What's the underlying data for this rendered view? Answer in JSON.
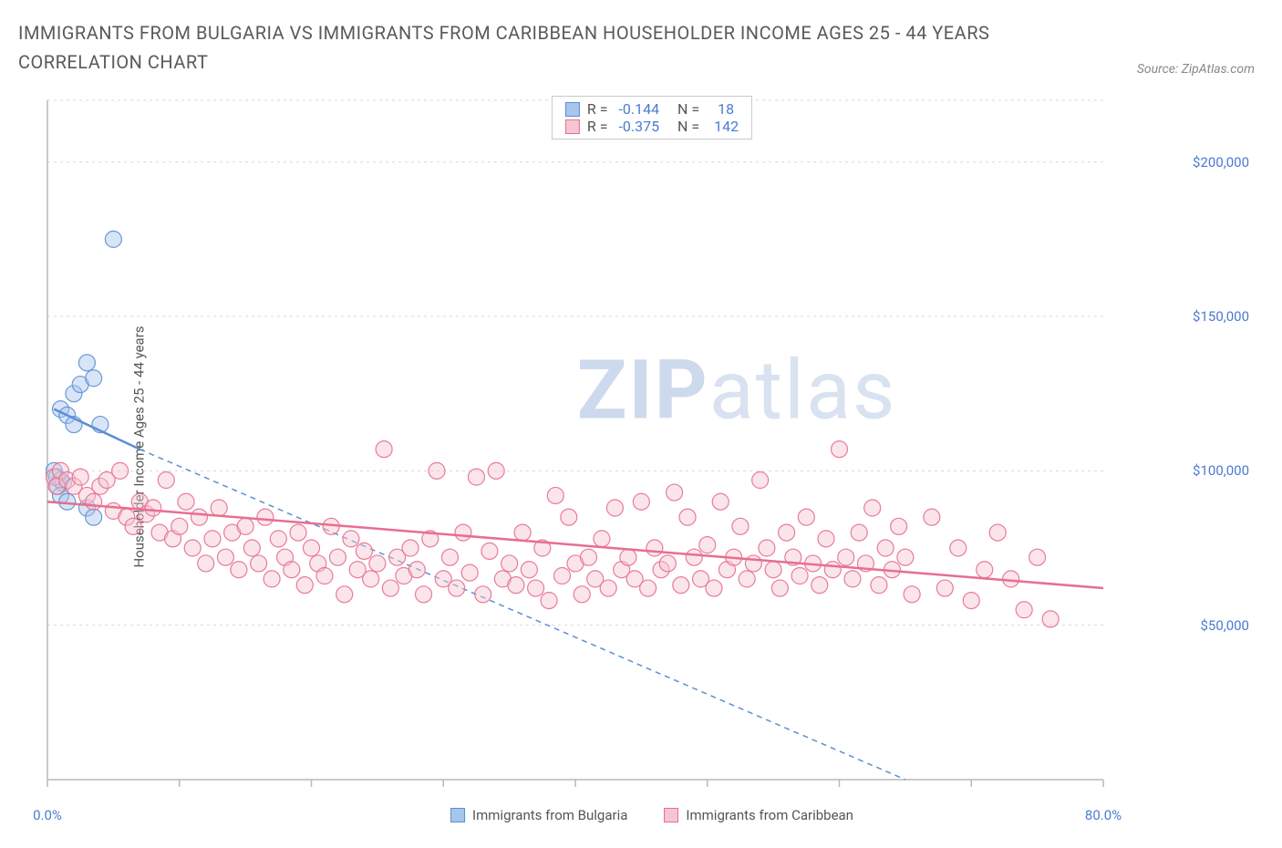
{
  "title": "IMMIGRANTS FROM BULGARIA VS IMMIGRANTS FROM CARIBBEAN HOUSEHOLDER INCOME AGES 25 - 44 YEARS CORRELATION CHART",
  "source": "Source: ZipAtlas.com",
  "watermark_zip": "ZIP",
  "watermark_atlas": "atlas",
  "chart": {
    "type": "scatter",
    "background_color": "#ffffff",
    "grid_color": "#d8d8d8",
    "axis_color": "#b8b8b8",
    "tick_label_color": "#4a7bd0",
    "tick_fontsize": 15,
    "y_axis_label": "Householder Income Ages 25 - 44 years",
    "y_label_fontsize": 15,
    "xlim": [
      0,
      80
    ],
    "ylim": [
      0,
      220000
    ],
    "x_ticks": [
      0,
      10,
      20,
      30,
      40,
      50,
      60,
      70,
      80
    ],
    "x_tick_labels_shown": {
      "0": "0.0%",
      "80": "80.0%"
    },
    "y_ticks": [
      50000,
      100000,
      150000,
      200000
    ],
    "y_tick_labels": [
      "$50,000",
      "$100,000",
      "$150,000",
      "$200,000"
    ],
    "marker_radius": 9,
    "marker_opacity": 0.45,
    "series": [
      {
        "name": "Immigrants from Bulgaria",
        "color_fill": "#a8c5ea",
        "color_stroke": "#5b8fd6",
        "R": "-0.144",
        "N": "18",
        "points": [
          [
            0.5,
            100000
          ],
          [
            0.7,
            98000
          ],
          [
            0.8,
            95000
          ],
          [
            1.0,
            97000
          ],
          [
            1.2,
            96000
          ],
          [
            1.0,
            120000
          ],
          [
            1.5,
            118000
          ],
          [
            2.0,
            125000
          ],
          [
            2.5,
            128000
          ],
          [
            3.0,
            135000
          ],
          [
            2.0,
            115000
          ],
          [
            3.5,
            130000
          ],
          [
            1.0,
            92000
          ],
          [
            1.5,
            90000
          ],
          [
            4.0,
            115000
          ],
          [
            3.0,
            88000
          ],
          [
            3.5,
            85000
          ],
          [
            5.0,
            175000
          ]
        ],
        "trend_solid": {
          "x1": 0.5,
          "y1": 120000,
          "x2": 7,
          "y2": 107000,
          "width": 2.5
        },
        "trend_dashed": {
          "x1": 7,
          "y1": 107000,
          "x2": 65,
          "y2": 0,
          "width": 1.5,
          "dash": "6,5"
        }
      },
      {
        "name": "Immigrants from Caribbean",
        "color_fill": "#f5c5d1",
        "color_stroke": "#e86e8f",
        "R": "-0.375",
        "N": "142",
        "points": [
          [
            0.5,
            98000
          ],
          [
            0.7,
            95000
          ],
          [
            1,
            100000
          ],
          [
            1.5,
            97000
          ],
          [
            2,
            95000
          ],
          [
            2.5,
            98000
          ],
          [
            3,
            92000
          ],
          [
            3.5,
            90000
          ],
          [
            4,
            95000
          ],
          [
            4.5,
            97000
          ],
          [
            5,
            87000
          ],
          [
            5.5,
            100000
          ],
          [
            6,
            85000
          ],
          [
            6.5,
            82000
          ],
          [
            7,
            90000
          ],
          [
            7.5,
            86000
          ],
          [
            8,
            88000
          ],
          [
            8.5,
            80000
          ],
          [
            9,
            97000
          ],
          [
            9.5,
            78000
          ],
          [
            10,
            82000
          ],
          [
            10.5,
            90000
          ],
          [
            11,
            75000
          ],
          [
            11.5,
            85000
          ],
          [
            12,
            70000
          ],
          [
            12.5,
            78000
          ],
          [
            13,
            88000
          ],
          [
            13.5,
            72000
          ],
          [
            14,
            80000
          ],
          [
            14.5,
            68000
          ],
          [
            15,
            82000
          ],
          [
            15.5,
            75000
          ],
          [
            16,
            70000
          ],
          [
            16.5,
            85000
          ],
          [
            17,
            65000
          ],
          [
            17.5,
            78000
          ],
          [
            18,
            72000
          ],
          [
            18.5,
            68000
          ],
          [
            19,
            80000
          ],
          [
            19.5,
            63000
          ],
          [
            20,
            75000
          ],
          [
            20.5,
            70000
          ],
          [
            21,
            66000
          ],
          [
            21.5,
            82000
          ],
          [
            22,
            72000
          ],
          [
            22.5,
            60000
          ],
          [
            23,
            78000
          ],
          [
            23.5,
            68000
          ],
          [
            24,
            74000
          ],
          [
            24.5,
            65000
          ],
          [
            25,
            70000
          ],
          [
            25.5,
            107000
          ],
          [
            26,
            62000
          ],
          [
            26.5,
            72000
          ],
          [
            27,
            66000
          ],
          [
            27.5,
            75000
          ],
          [
            28,
            68000
          ],
          [
            28.5,
            60000
          ],
          [
            29,
            78000
          ],
          [
            29.5,
            100000
          ],
          [
            30,
            65000
          ],
          [
            30.5,
            72000
          ],
          [
            31,
            62000
          ],
          [
            31.5,
            80000
          ],
          [
            32,
            67000
          ],
          [
            32.5,
            98000
          ],
          [
            33,
            60000
          ],
          [
            33.5,
            74000
          ],
          [
            34,
            100000
          ],
          [
            34.5,
            65000
          ],
          [
            35,
            70000
          ],
          [
            35.5,
            63000
          ],
          [
            36,
            80000
          ],
          [
            36.5,
            68000
          ],
          [
            37,
            62000
          ],
          [
            37.5,
            75000
          ],
          [
            38,
            58000
          ],
          [
            38.5,
            92000
          ],
          [
            39,
            66000
          ],
          [
            39.5,
            85000
          ],
          [
            40,
            70000
          ],
          [
            40.5,
            60000
          ],
          [
            41,
            72000
          ],
          [
            41.5,
            65000
          ],
          [
            42,
            78000
          ],
          [
            42.5,
            62000
          ],
          [
            43,
            88000
          ],
          [
            43.5,
            68000
          ],
          [
            44,
            72000
          ],
          [
            44.5,
            65000
          ],
          [
            45,
            90000
          ],
          [
            45.5,
            62000
          ],
          [
            46,
            75000
          ],
          [
            46.5,
            68000
          ],
          [
            47,
            70000
          ],
          [
            47.5,
            93000
          ],
          [
            48,
            63000
          ],
          [
            48.5,
            85000
          ],
          [
            49,
            72000
          ],
          [
            49.5,
            65000
          ],
          [
            50,
            76000
          ],
          [
            50.5,
            62000
          ],
          [
            51,
            90000
          ],
          [
            51.5,
            68000
          ],
          [
            52,
            72000
          ],
          [
            52.5,
            82000
          ],
          [
            53,
            65000
          ],
          [
            53.5,
            70000
          ],
          [
            54,
            97000
          ],
          [
            54.5,
            75000
          ],
          [
            55,
            68000
          ],
          [
            55.5,
            62000
          ],
          [
            56,
            80000
          ],
          [
            56.5,
            72000
          ],
          [
            57,
            66000
          ],
          [
            57.5,
            85000
          ],
          [
            58,
            70000
          ],
          [
            58.5,
            63000
          ],
          [
            59,
            78000
          ],
          [
            59.5,
            68000
          ],
          [
            60,
            107000
          ],
          [
            60.5,
            72000
          ],
          [
            61,
            65000
          ],
          [
            61.5,
            80000
          ],
          [
            62,
            70000
          ],
          [
            62.5,
            88000
          ],
          [
            63,
            63000
          ],
          [
            63.5,
            75000
          ],
          [
            64,
            68000
          ],
          [
            64.5,
            82000
          ],
          [
            65,
            72000
          ],
          [
            65.5,
            60000
          ],
          [
            67,
            85000
          ],
          [
            68,
            62000
          ],
          [
            69,
            75000
          ],
          [
            70,
            58000
          ],
          [
            71,
            68000
          ],
          [
            72,
            80000
          ],
          [
            73,
            65000
          ],
          [
            74,
            55000
          ],
          [
            75,
            72000
          ],
          [
            76,
            52000
          ]
        ],
        "trend_solid": {
          "x1": 0,
          "y1": 90000,
          "x2": 80,
          "y2": 62000,
          "width": 2.5
        }
      }
    ]
  },
  "legend": {
    "items": [
      {
        "label": "Immigrants from Bulgaria",
        "fill": "#a8c5ea",
        "stroke": "#5b8fd6"
      },
      {
        "label": "Immigrants from Caribbean",
        "fill": "#f5c5d1",
        "stroke": "#e86e8f"
      }
    ]
  }
}
